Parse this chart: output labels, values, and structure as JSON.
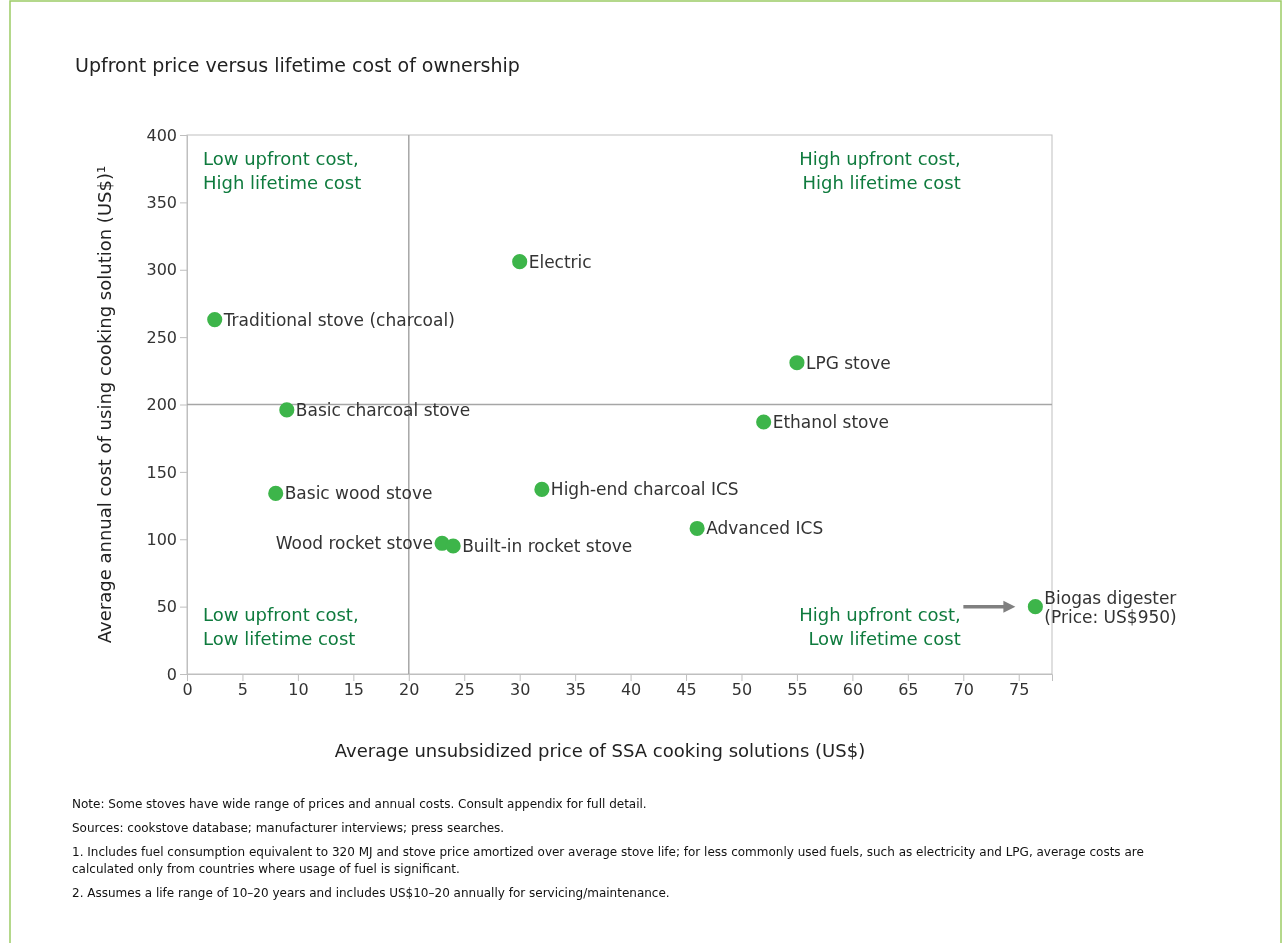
{
  "chart_data": {
    "type": "scatter",
    "title": "Upfront price versus lifetime cost of ownership",
    "xlabel": "Average unsubsidized price of SSA cooking solutions (US$)",
    "ylabel": "Average annual cost of using cooking solution (US$)¹",
    "xlim": [
      0,
      78
    ],
    "xticks": [
      0,
      5,
      10,
      15,
      20,
      25,
      30,
      35,
      40,
      45,
      50,
      55,
      60,
      65,
      70,
      75
    ],
    "ylim": [
      0,
      400
    ],
    "yticks": [
      0,
      50,
      100,
      150,
      200,
      250,
      300,
      350,
      400
    ],
    "grid": false,
    "legend": false,
    "marker": "circle",
    "series": [
      {
        "name": "Traditional stove (charcoal)",
        "color": "#3db54a",
        "x": [
          2.5
        ],
        "values": [
          263
        ]
      },
      {
        "name": "Electric",
        "color": "#3db54a",
        "x": [
          30
        ],
        "values": [
          306
        ]
      },
      {
        "name": "LPG stove",
        "color": "#3db54a",
        "x": [
          55
        ],
        "values": [
          231
        ]
      },
      {
        "name": "Basic charcoal stove",
        "color": "#3db54a",
        "x": [
          9
        ],
        "values": [
          196
        ]
      },
      {
        "name": "Ethanol stove",
        "color": "#3db54a",
        "x": [
          52
        ],
        "values": [
          187
        ]
      },
      {
        "name": "Basic wood stove",
        "color": "#3db54a",
        "x": [
          8
        ],
        "values": [
          134
        ]
      },
      {
        "name": "High-end charcoal ICS",
        "color": "#3db54a",
        "x": [
          32
        ],
        "values": [
          137
        ]
      },
      {
        "name": "Advanced ICS",
        "color": "#3db54a",
        "x": [
          46
        ],
        "values": [
          108
        ]
      },
      {
        "name": "Wood rocket stove",
        "color": "#3db54a",
        "x": [
          23
        ],
        "values": [
          97
        ]
      },
      {
        "name": "Built-in rocket stove",
        "color": "#3db54a",
        "x": [
          24
        ],
        "values": [
          95
        ]
      },
      {
        "name": "Biogas digester (Price: US$950)",
        "color": "#3db54a",
        "x": [
          76.5
        ],
        "values": [
          50
        ]
      }
    ],
    "ref_lines": [
      {
        "axis": "x",
        "value": 20,
        "color": "#a6a6a6"
      },
      {
        "axis": "y",
        "value": 200,
        "color": "#a6a6a6"
      }
    ],
    "annotations": [
      "Low upfront cost, High lifetime cost",
      "High upfront cost, High lifetime cost",
      "Low upfront cost, Low lifetime cost",
      "High upfront cost, Low lifetime cost",
      "Note: Some stoves have wide range of prices and annual costs. Consult appendix for full detail.",
      "Sources: cookstove database; manufacturer interviews; press searches.",
      "1. Includes fuel consumption equivalent to 320 MJ and stove price amortized over average stove life; for less commonly used fuels, such as electricity and LPG, average costs are calculated only from countries where usage of fuel is significant.",
      "2. Assumes a life range of 10–20 years and includes US$10–20 annually for servicing/maintenance."
    ]
  }
}
